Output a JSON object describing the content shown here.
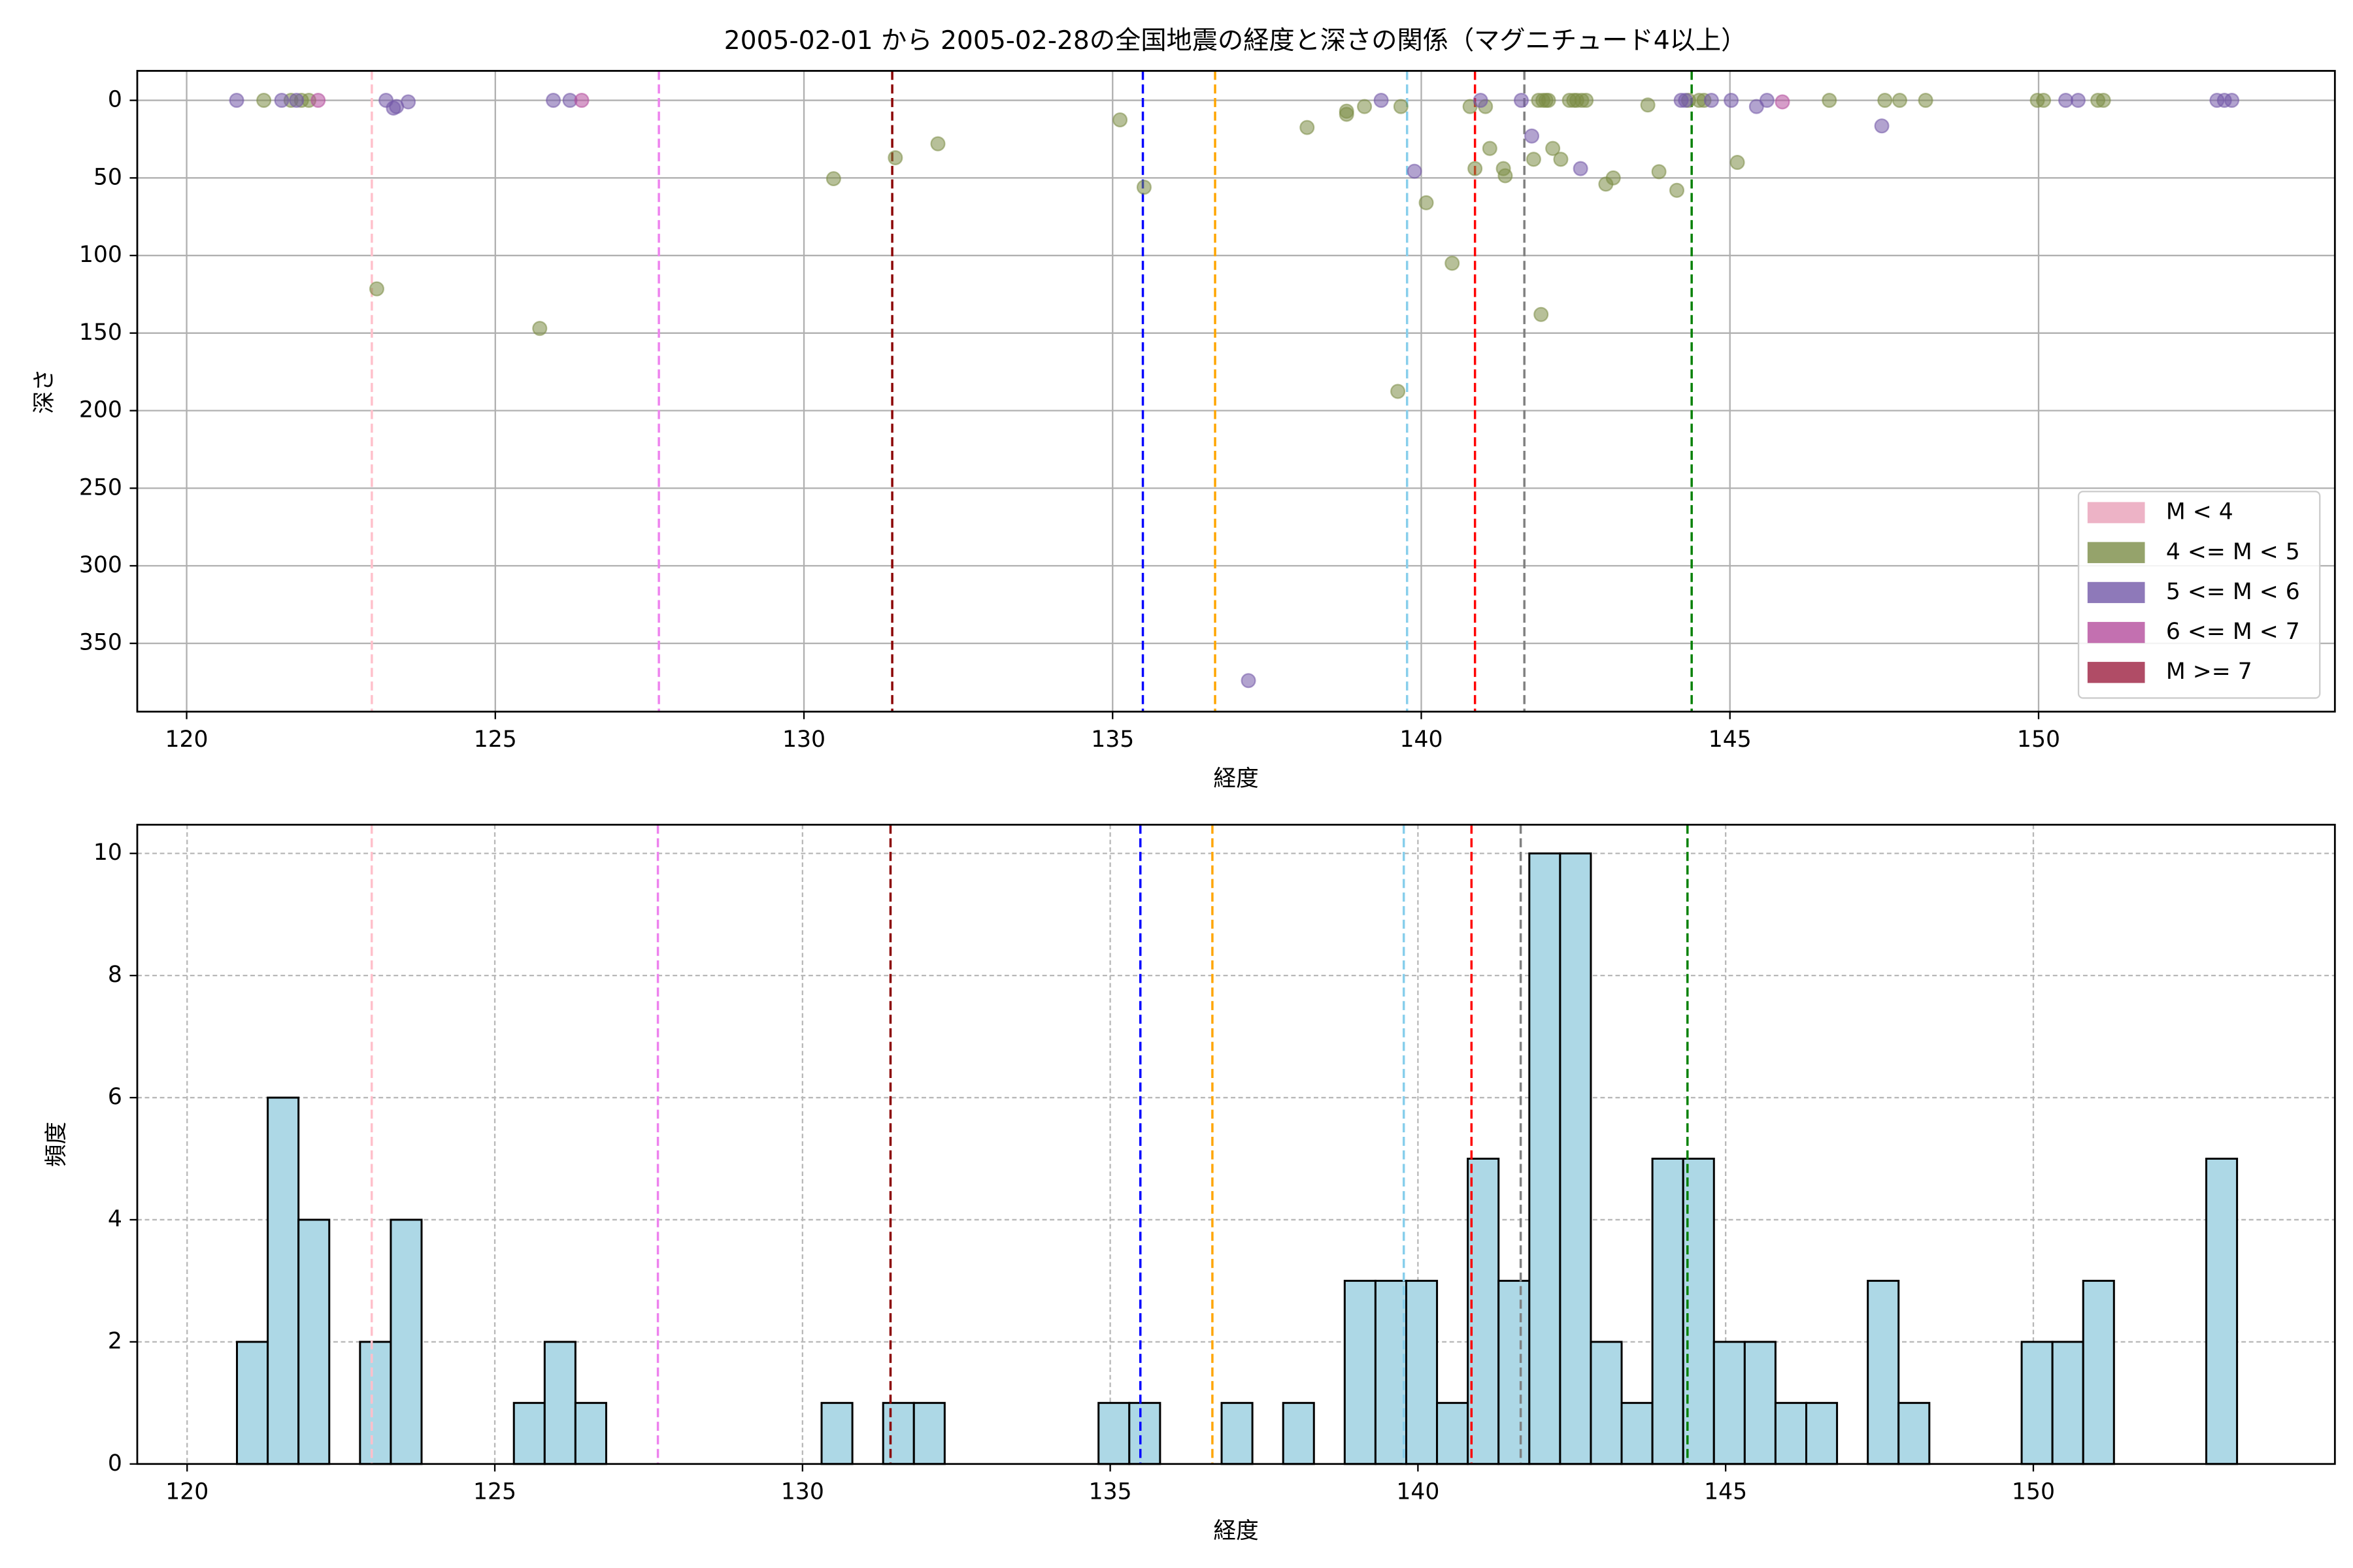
{
  "chart_data": [
    {
      "type": "scatter",
      "title": "2005-02-01 から 2005-02-28の全国地震の経度と深さの関係（マグニチュード4以上）",
      "x_label": "経度",
      "y_label": "深さ",
      "xlim": [
        119.2,
        154.8
      ],
      "ylim": [
        394,
        -19
      ],
      "xticks": [
        120,
        125,
        130,
        135,
        140,
        145,
        150
      ],
      "yticks": [
        0,
        50,
        100,
        150,
        200,
        250,
        300,
        350
      ],
      "grid": true,
      "grid_style": "solid",
      "legend": "lower right",
      "alpha": 0.55,
      "vlines": [
        {
          "x": 123.0,
          "color": "pink"
        },
        {
          "x": 127.65,
          "color": "violet"
        },
        {
          "x": 131.43,
          "color": "darkred"
        },
        {
          "x": 135.49,
          "color": "blue"
        },
        {
          "x": 136.66,
          "color": "orange"
        },
        {
          "x": 139.77,
          "color": "skyblue"
        },
        {
          "x": 140.87,
          "color": "red"
        },
        {
          "x": 141.67,
          "color": "gray"
        },
        {
          "x": 144.38,
          "color": "green"
        }
      ],
      "series": [
        {
          "name": "M < 4",
          "color": "#e8a0b8",
          "x": [],
          "values": []
        },
        {
          "name": "4 <= M < 5",
          "color": "#7b8c46",
          "x": [
            121.25,
            121.69,
            121.86,
            121.98,
            123.08,
            125.72,
            130.48,
            131.48,
            132.17,
            135.12,
            135.51,
            138.15,
            138.79,
            138.79,
            139.08,
            139.62,
            139.67,
            140.08,
            140.5,
            140.79,
            140.87,
            141.04,
            141.11,
            141.33,
            141.36,
            141.82,
            141.94,
            141.9,
            141.97,
            142.02,
            142.06,
            142.13,
            142.26,
            142.4,
            142.47,
            142.52,
            142.6,
            142.67,
            142.99,
            143.11,
            143.67,
            143.85,
            144.14,
            144.33,
            144.5,
            144.58,
            145.12,
            146.61,
            147.51,
            147.75,
            148.17,
            149.98,
            150.08,
            150.96,
            151.05
          ],
          "values": [
            0,
            0,
            0,
            0,
            121.5,
            147,
            50.5,
            37,
            28,
            12.6,
            56,
            17.5,
            7,
            9,
            4,
            187.6,
            4,
            66,
            105,
            4,
            44,
            4,
            31,
            44,
            48.6,
            38,
            138,
            0,
            0,
            0,
            0,
            31,
            38,
            0,
            0,
            0,
            0,
            0,
            54,
            50,
            3,
            46,
            58,
            0,
            0,
            0,
            40,
            0,
            0,
            0,
            0,
            0,
            0,
            0,
            0
          ]
        },
        {
          "name": "5 <= M < 6",
          "color": "#7258a8",
          "x": [
            120.81,
            121.54,
            121.78,
            123.23,
            123.35,
            123.4,
            123.59,
            125.94,
            126.21,
            137.2,
            139.35,
            139.89,
            140.96,
            141.62,
            141.79,
            142.58,
            144.21,
            144.28,
            144.7,
            145.02,
            145.43,
            145.6,
            147.46,
            150.44,
            150.64,
            152.89,
            153.01,
            153.13
          ],
          "values": [
            0,
            0,
            0,
            0,
            5,
            4,
            1,
            0,
            0,
            374,
            0,
            45.7,
            0,
            0,
            23,
            44,
            0,
            0,
            0,
            0,
            4,
            0,
            16.5,
            0,
            0,
            0,
            0,
            0
          ]
        },
        {
          "name": "6 <= M < 7",
          "color": "#b44c9c",
          "x": [
            122.13,
            126.4,
            145.85
          ],
          "values": [
            0,
            0,
            1
          ]
        },
        {
          "name": "M >= 7",
          "color": "#9c1f40",
          "x": [],
          "values": []
        }
      ]
    },
    {
      "type": "histogram",
      "x_label": "経度",
      "y_label": "頻度",
      "xlim": [
        119.19,
        154.9
      ],
      "ylim": [
        0,
        10.47
      ],
      "xticks": [
        120,
        125,
        130,
        135,
        140,
        145,
        150
      ],
      "yticks": [
        0,
        2,
        4,
        6,
        8,
        10
      ],
      "grid": true,
      "grid_style": "dashed",
      "color": "#add8e6",
      "edgecolor": "#000000",
      "vlines": [
        {
          "x": 123.0,
          "color": "pink"
        },
        {
          "x": 127.65,
          "color": "violet"
        },
        {
          "x": 131.43,
          "color": "darkred"
        },
        {
          "x": 135.49,
          "color": "blue"
        },
        {
          "x": 136.66,
          "color": "orange"
        },
        {
          "x": 139.77,
          "color": "skyblue"
        },
        {
          "x": 140.87,
          "color": "red"
        },
        {
          "x": 141.67,
          "color": "gray"
        },
        {
          "x": 144.38,
          "color": "green"
        }
      ],
      "bins": [
        120.81,
        121.31,
        121.81,
        122.31,
        122.81,
        123.31,
        123.81,
        124.31,
        124.81,
        125.31,
        125.81,
        126.31,
        126.81,
        127.31,
        127.81,
        128.31,
        128.81,
        129.31,
        129.81,
        130.31,
        130.81,
        131.31,
        131.81,
        132.31,
        132.81,
        133.31,
        133.81,
        134.31,
        134.81,
        135.31,
        135.81,
        136.31,
        136.81,
        137.31,
        137.81,
        138.31,
        138.81,
        139.31,
        139.81,
        140.31,
        140.81,
        141.31,
        141.81,
        142.31,
        142.81,
        143.31,
        143.81,
        144.31,
        144.81,
        145.31,
        145.81,
        146.31,
        146.81,
        147.31,
        147.81,
        148.31,
        148.81,
        149.31,
        149.81,
        150.31,
        150.81,
        151.31,
        151.81,
        152.31,
        152.81,
        153.31
      ],
      "values": [
        2,
        6,
        4,
        0,
        2,
        4,
        0,
        0,
        0,
        1,
        2,
        1,
        0,
        0,
        0,
        0,
        0,
        0,
        0,
        1,
        0,
        1,
        1,
        0,
        0,
        0,
        0,
        0,
        1,
        1,
        0,
        0,
        1,
        0,
        1,
        0,
        3,
        3,
        3,
        1,
        5,
        3,
        10,
        10,
        2,
        1,
        5,
        5,
        2,
        2,
        1,
        1,
        0,
        3,
        1,
        0,
        0,
        0,
        2,
        2,
        3,
        0,
        0,
        0,
        5
      ]
    }
  ]
}
